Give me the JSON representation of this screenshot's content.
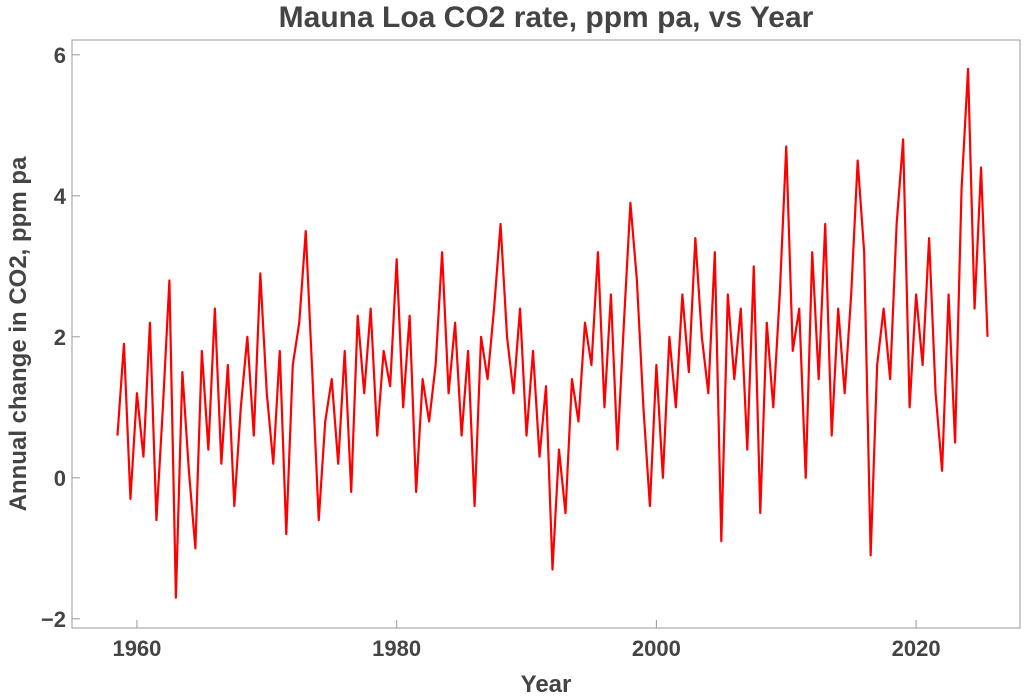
{
  "chart_data": {
    "type": "line",
    "title": "Mauna Loa CO2 rate, ppm pa, vs Year",
    "xlabel": "Year",
    "ylabel": "Annual change in CO2, ppm pa",
    "xlim": [
      1955,
      2028
    ],
    "ylim": [
      -2.13,
      6.21
    ],
    "xticks": [
      1960,
      1980,
      2000,
      2020
    ],
    "yticks": [
      {
        "value": -2,
        "label": "−2"
      },
      0,
      2,
      4,
      6
    ],
    "grid": false,
    "series": [
      {
        "name": "CO2 rate",
        "color": "#ff0000",
        "x": [
          1958.5,
          1959,
          1959.5,
          1960,
          1960.5,
          1961,
          1961.5,
          1962,
          1962.5,
          1963,
          1963.5,
          1964,
          1964.5,
          1965,
          1965.5,
          1966,
          1966.5,
          1967,
          1967.5,
          1968,
          1968.5,
          1969,
          1969.5,
          1970,
          1970.5,
          1971,
          1971.5,
          1972,
          1972.5,
          1973,
          1973.5,
          1974,
          1974.5,
          1975,
          1975.5,
          1976,
          1976.5,
          1977,
          1977.5,
          1978,
          1978.5,
          1979,
          1979.5,
          1980,
          1980.5,
          1981,
          1981.5,
          1982,
          1982.5,
          1983,
          1983.5,
          1984,
          1984.5,
          1985,
          1985.5,
          1986,
          1986.5,
          1987,
          1987.5,
          1988,
          1988.5,
          1989,
          1989.5,
          1990,
          1990.5,
          1991,
          1991.5,
          1992,
          1992.5,
          1993,
          1993.5,
          1994,
          1994.5,
          1995,
          1995.5,
          1996,
          1996.5,
          1997,
          1997.5,
          1998,
          1998.5,
          1999,
          1999.5,
          2000,
          2000.5,
          2001,
          2001.5,
          2002,
          2002.5,
          2003,
          2003.5,
          2004,
          2004.5,
          2005,
          2005.5,
          2006,
          2006.5,
          2007,
          2007.5,
          2008,
          2008.5,
          2009,
          2009.5,
          2010,
          2010.5,
          2011,
          2011.5,
          2012,
          2012.5,
          2013,
          2013.5,
          2014,
          2014.5,
          2015,
          2015.5,
          2016,
          2016.5,
          2017,
          2017.5,
          2018,
          2018.5,
          2019,
          2019.5,
          2020,
          2020.5,
          2021,
          2021.5,
          2022,
          2022.5,
          2023,
          2023.5,
          2024,
          2024.5,
          2025,
          2025.5
        ],
        "values": [
          0.6,
          1.9,
          -0.3,
          1.2,
          0.3,
          2.2,
          -0.6,
          1.0,
          2.8,
          -1.7,
          1.5,
          0.1,
          -1.0,
          1.8,
          0.4,
          2.4,
          0.2,
          1.6,
          -0.4,
          1.0,
          2.0,
          0.6,
          2.9,
          1.2,
          0.2,
          1.8,
          -0.8,
          1.6,
          2.2,
          3.5,
          1.5,
          -0.6,
          0.8,
          1.4,
          0.2,
          1.8,
          -0.2,
          2.3,
          1.2,
          2.4,
          0.6,
          1.8,
          1.3,
          3.1,
          1.0,
          2.3,
          -0.2,
          1.4,
          0.8,
          1.6,
          3.2,
          1.2,
          2.2,
          0.6,
          1.8,
          -0.4,
          2.0,
          1.4,
          2.4,
          3.6,
          2.0,
          1.2,
          2.4,
          0.6,
          1.8,
          0.3,
          1.3,
          -1.3,
          0.4,
          -0.5,
          1.4,
          0.8,
          2.2,
          1.6,
          3.2,
          1.0,
          2.6,
          0.4,
          2.2,
          3.9,
          2.8,
          1.0,
          -0.4,
          1.6,
          0.0,
          2.0,
          1.0,
          2.6,
          1.5,
          3.4,
          2.0,
          1.2,
          3.2,
          -0.9,
          2.6,
          1.4,
          2.4,
          0.4,
          3.0,
          -0.5,
          2.2,
          1.0,
          2.6,
          4.7,
          1.8,
          2.4,
          0.0,
          3.2,
          1.4,
          3.6,
          0.6,
          2.4,
          1.2,
          2.6,
          4.5,
          3.2,
          -1.1,
          1.6,
          2.4,
          1.4,
          3.6,
          4.8,
          1.0,
          2.6,
          1.6,
          3.4,
          1.2,
          0.1,
          2.6,
          0.5,
          4.1,
          5.8,
          2.4,
          4.4,
          2.0
        ]
      }
    ]
  }
}
